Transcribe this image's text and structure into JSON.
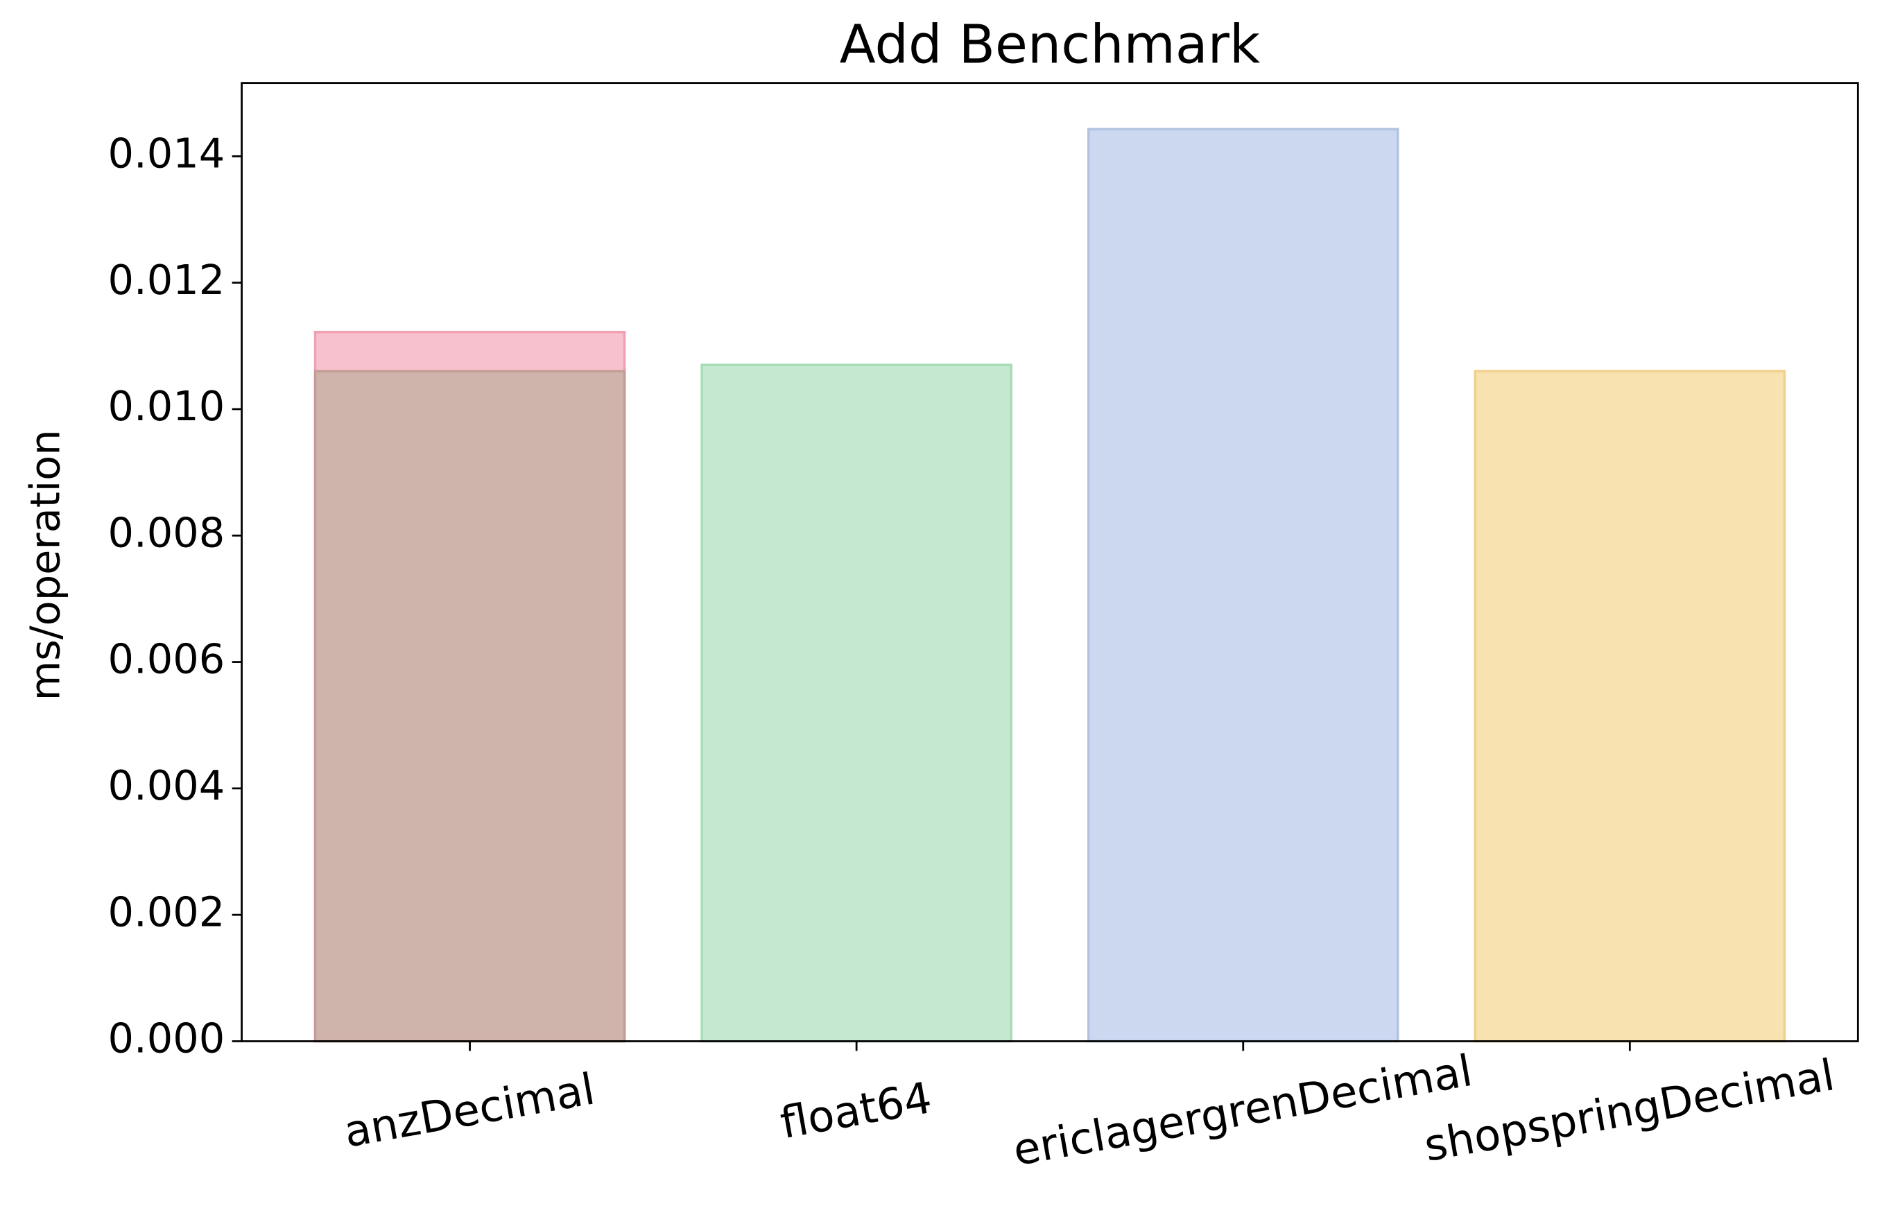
{
  "chart_data": {
    "type": "bar",
    "title": "Add Benchmark",
    "y_label": "ms/operation",
    "categories": [
      "anzDecimal",
      "float64",
      "ericlagergrenDecimal",
      "shopspringDecimal"
    ],
    "series": [
      {
        "color": "#f7c2cd",
        "edge_color": "#efa0b2",
        "values": [
          0.01122,
          0.0107,
          0.01443,
          0.0106
        ],
        "colors": [
          "#f7c2cd",
          "#c5e9d0",
          "#ccd8ef",
          "#f7e2b0"
        ],
        "edge_colors": [
          "#efa0b2",
          "#a6dcb6",
          "#b2c3e2",
          "#f0d08a"
        ]
      },
      {
        "color": "#cfb4ab",
        "edge_color": "#c49c95",
        "values": [
          0.0106,
          null,
          null,
          null
        ]
      }
    ],
    "ylim": [
      0,
      0.01516
    ],
    "yticks": [
      {
        "value": 0,
        "label": "0.000"
      },
      {
        "value": 0.002,
        "label": "0.002"
      },
      {
        "value": 0.004,
        "label": "0.004"
      },
      {
        "value": 0.006,
        "label": "0.006"
      },
      {
        "value": 0.008,
        "label": "0.008"
      },
      {
        "value": 0.01,
        "label": "0.010"
      },
      {
        "value": 0.012,
        "label": "0.012"
      },
      {
        "value": 0.014,
        "label": "0.014"
      }
    ],
    "grid": false
  }
}
